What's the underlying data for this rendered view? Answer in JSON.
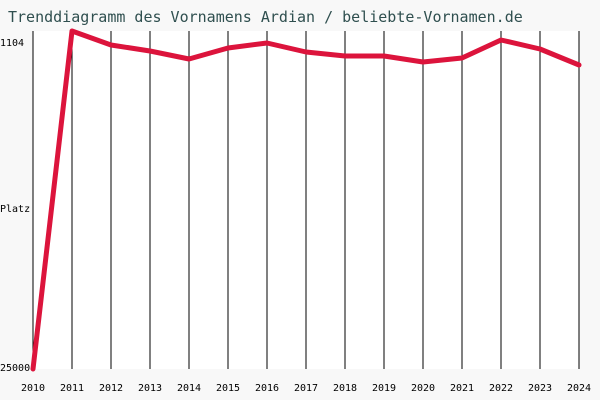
{
  "colors": {
    "background": "#f8f8f8",
    "plot_area": "#ffffff",
    "title": "#2f4f4f",
    "series_line": "#dc143c",
    "grid": "#000000"
  },
  "chart_data": {
    "type": "line",
    "title": "Trenddiagramm des Vornamens Ardian / beliebte-Vornamen.de",
    "ylabel": "Platz",
    "y_tick_labels": {
      "top": "1104",
      "bottom": "25000"
    },
    "ylim": [
      25000,
      1104
    ],
    "y_axis_inverted": true,
    "grid": "vertical",
    "x": [
      "2010",
      "2011",
      "2012",
      "2013",
      "2014",
      "2015",
      "2016",
      "2017",
      "2018",
      "2019",
      "2020",
      "2021",
      "2022",
      "2023",
      "2024"
    ],
    "series": [
      {
        "values": [
          25000,
          1104,
          1104,
          1104,
          1104,
          1104,
          1104,
          1104,
          1104,
          1104,
          1104,
          1104,
          1104,
          1104,
          1104
        ]
      }
    ]
  }
}
